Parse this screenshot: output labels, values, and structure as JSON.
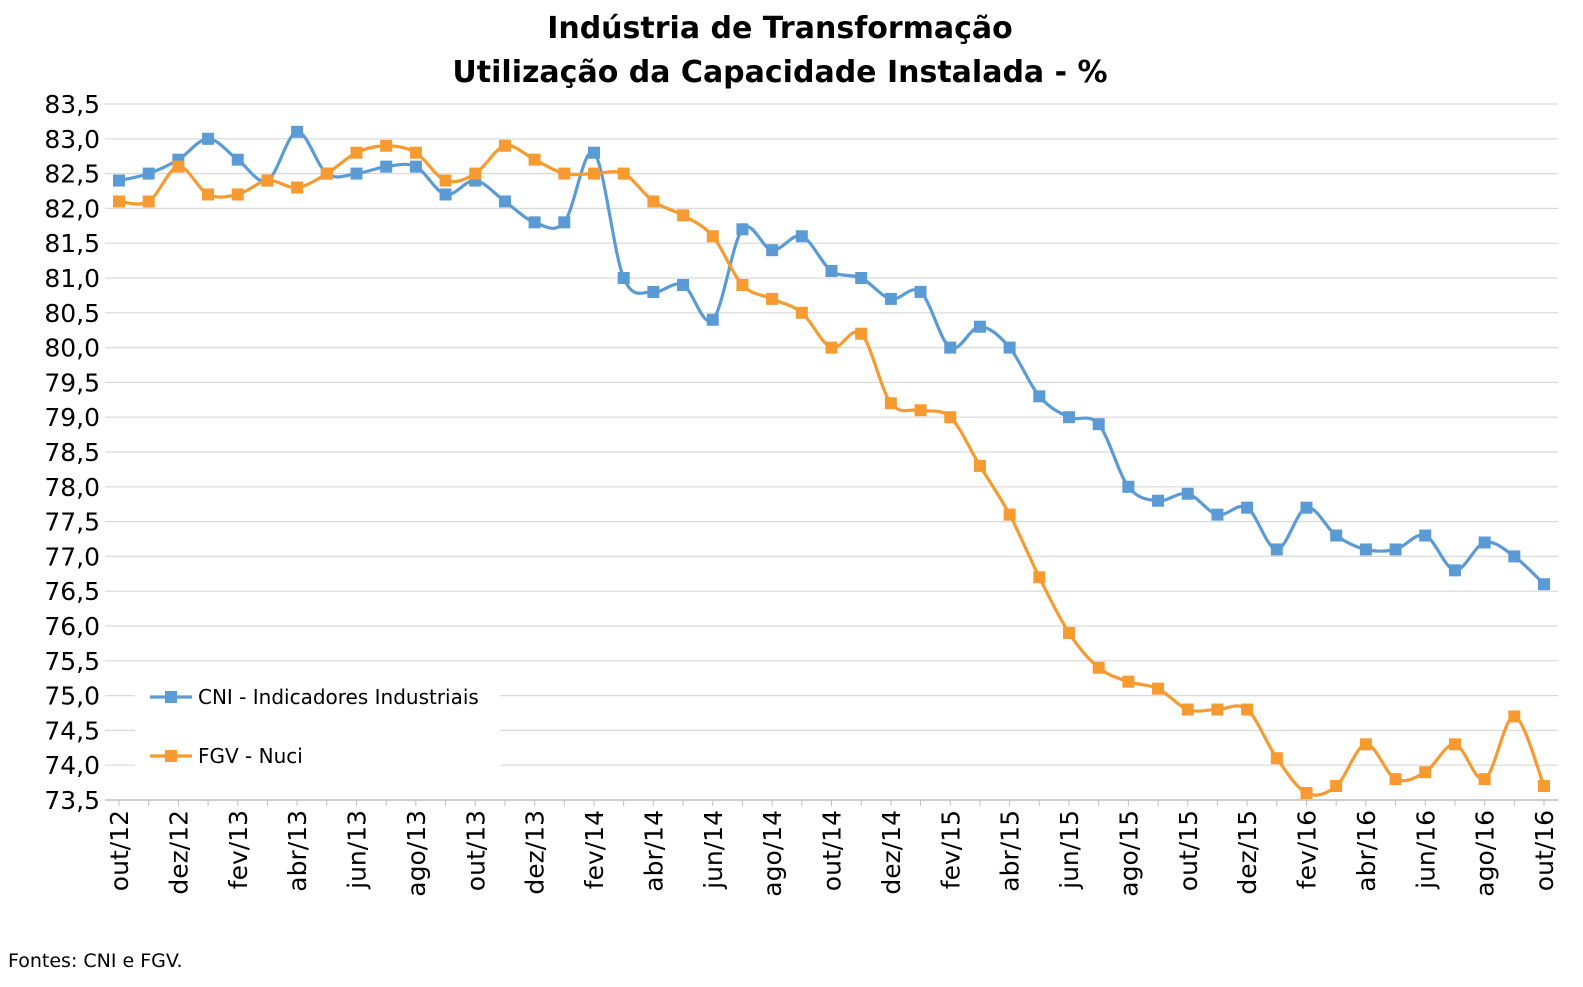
{
  "source_note": "Fontes: CNI e FGV.",
  "chart_data": {
    "type": "line",
    "title": "Indústria de Transformação",
    "subtitle": "Utilização da Capacidade Instalada - %",
    "xlabel": "",
    "ylabel": "",
    "ylim": [
      73.5,
      83.5
    ],
    "y_step": 0.5,
    "grid": true,
    "legend_position": "bottom-left",
    "categories": [
      "out/12",
      "nov/12",
      "dez/12",
      "jan/13",
      "fev/13",
      "mar/13",
      "abr/13",
      "mai/13",
      "jun/13",
      "jul/13",
      "ago/13",
      "set/13",
      "out/13",
      "nov/13",
      "dez/13",
      "jan/14",
      "fev/14",
      "mar/14",
      "abr/14",
      "mai/14",
      "jun/14",
      "jul/14",
      "ago/14",
      "set/14",
      "out/14",
      "nov/14",
      "dez/14",
      "jan/15",
      "fev/15",
      "mar/15",
      "abr/15",
      "mai/15",
      "jun/15",
      "jul/15",
      "ago/15",
      "set/15",
      "out/15",
      "nov/15",
      "dez/15",
      "jan/16",
      "fev/16",
      "mar/16",
      "abr/16",
      "mai/16",
      "jun/16",
      "jul/16",
      "ago/16",
      "set/16",
      "out/16"
    ],
    "tick_labels": [
      "out/12",
      "dez/12",
      "fev/13",
      "abr/13",
      "jun/13",
      "ago/13",
      "out/13",
      "dez/13",
      "fev/14",
      "abr/14",
      "jun/14",
      "ago/14",
      "out/14",
      "dez/14",
      "fev/15",
      "abr/15",
      "jun/15",
      "ago/15",
      "out/15",
      "dez/15",
      "fev/16",
      "abr/16",
      "jun/16",
      "ago/16",
      "out/16"
    ],
    "series": [
      {
        "name": "CNI - Indicadores Industriais",
        "color": "#5b9bd5",
        "values": [
          82.4,
          82.5,
          82.7,
          83.0,
          82.7,
          82.4,
          83.1,
          82.5,
          82.5,
          82.6,
          82.6,
          82.2,
          82.4,
          82.1,
          81.8,
          81.8,
          82.8,
          81.0,
          80.8,
          80.9,
          80.4,
          81.7,
          81.4,
          81.6,
          81.1,
          81.0,
          80.7,
          80.8,
          80.0,
          80.3,
          80.0,
          79.3,
          79.0,
          78.9,
          78.0,
          77.8,
          77.9,
          77.6,
          77.7,
          77.1,
          77.7,
          77.3,
          77.1,
          77.1,
          77.3,
          76.8,
          77.2,
          77.0,
          76.6
        ]
      },
      {
        "name": "FGV - Nuci",
        "color": "#f79a2f",
        "values": [
          82.1,
          82.1,
          82.6,
          82.2,
          82.2,
          82.4,
          82.3,
          82.5,
          82.8,
          82.9,
          82.8,
          82.4,
          82.5,
          82.9,
          82.7,
          82.5,
          82.5,
          82.5,
          82.1,
          81.9,
          81.6,
          80.9,
          80.7,
          80.5,
          80.0,
          80.2,
          79.2,
          79.1,
          79.0,
          78.3,
          77.6,
          76.7,
          75.9,
          75.4,
          75.2,
          75.1,
          74.8,
          74.8,
          74.8,
          74.1,
          73.6,
          73.7,
          74.3,
          73.8,
          73.9,
          74.3,
          73.8,
          74.7,
          73.7
        ]
      }
    ]
  }
}
